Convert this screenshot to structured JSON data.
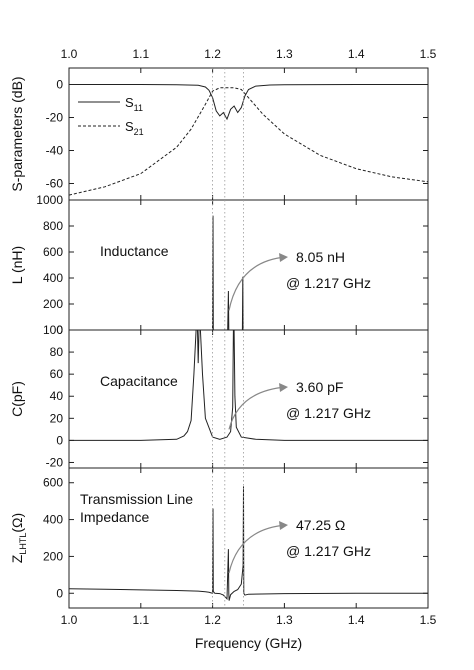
{
  "chart_data": {
    "type": "line",
    "xlabel": "Frequency (GHz)",
    "xlim": [
      1.0,
      1.5
    ],
    "xticks": [
      "1.0",
      "1.1",
      "1.2",
      "1.3",
      "1.4",
      "1.5"
    ],
    "top_xticks": [
      "1.0",
      "1.1",
      "1.2",
      "1.3",
      "1.4",
      "1.5"
    ],
    "guide_lines_x": [
      1.2,
      1.217,
      1.243
    ],
    "panels": [
      {
        "id": "s_params",
        "ylabel": "S-parameters (dB)",
        "ylim": [
          -70,
          10
        ],
        "yticks": [
          "0",
          "-20",
          "-40",
          "-60"
        ],
        "legend": {
          "placement": "left",
          "entries": [
            {
              "text": "S",
              "sub": "11",
              "style": "solid"
            },
            {
              "text": "S",
              "sub": "21",
              "style": "dashed"
            }
          ]
        },
        "series": [
          {
            "name": "S11",
            "style": "solid",
            "x": [
              1.0,
              1.1,
              1.15,
              1.18,
              1.19,
              1.195,
              1.2,
              1.205,
              1.21,
              1.215,
              1.22,
              1.225,
              1.23,
              1.235,
              1.24,
              1.245,
              1.25,
              1.26,
              1.28,
              1.3,
              1.4,
              1.5
            ],
            "y": [
              0,
              0,
              -0.1,
              -0.5,
              -1.5,
              -3.5,
              -8,
              -16,
              -19,
              -17,
              -21,
              -15,
              -13,
              -17,
              -14,
              -7,
              -3,
              -1,
              -0.3,
              -0.1,
              0,
              0
            ]
          },
          {
            "name": "S21",
            "style": "dashed",
            "x": [
              1.0,
              1.05,
              1.1,
              1.15,
              1.17,
              1.19,
              1.2,
              1.21,
              1.22,
              1.23,
              1.24,
              1.25,
              1.27,
              1.3,
              1.35,
              1.4,
              1.45,
              1.5
            ],
            "y": [
              -67,
              -62,
              -54,
              -38,
              -27,
              -12,
              -4,
              -2,
              -2,
              -2,
              -3,
              -8,
              -18,
              -30,
              -43,
              -51,
              -56,
              -59
            ]
          }
        ]
      },
      {
        "id": "inductance",
        "ylabel": "L (nH)",
        "ylim": [
          0,
          1000
        ],
        "yticks": [
          "1000",
          "800",
          "600",
          "400",
          "200",
          "0"
        ],
        "label": "Inductance",
        "annotation": {
          "line1": "8.05 nH",
          "line2": "@ 1.217 GHz",
          "arrow_from_x": 1.22,
          "arrow_from_y": 150
        },
        "series": [
          {
            "name": "L",
            "style": "solid",
            "x": [
              1.0,
              1.198,
              1.2,
              1.2005,
              1.201,
              1.22,
              1.221,
              1.222,
              1.2225,
              1.223,
              1.241,
              1.2415,
              1.242,
              1.2425,
              1.243,
              1.5
            ],
            "y": [
              0,
              0,
              0,
              880,
              0,
              0,
              0,
              300,
              0,
              0,
              0,
              0,
              410,
              0,
              0,
              0
            ]
          }
        ]
      },
      {
        "id": "capacitance",
        "ylabel": "C(pF)",
        "ylim": [
          -25,
          100
        ],
        "yticks": [
          "100",
          "80",
          "60",
          "40",
          "20",
          "0",
          "-20"
        ],
        "label": "Capacitance",
        "annotation": {
          "line1": "3.60 pF",
          "line2": "@ 1.217 GHz",
          "arrow_from_x": 1.22,
          "arrow_from_y": 10
        },
        "series": [
          {
            "name": "C",
            "style": "solid",
            "x": [
              1.0,
              1.1,
              1.15,
              1.16,
              1.165,
              1.17,
              1.174,
              1.177,
              1.179,
              1.18,
              1.181,
              1.183,
              1.186,
              1.19,
              1.2,
              1.21,
              1.22,
              1.225,
              1.228,
              1.229,
              1.23,
              1.231,
              1.233,
              1.24,
              1.26,
              1.3,
              1.5
            ],
            "y": [
              0,
              0,
              1,
              4,
              8,
              18,
              60,
              100,
              100,
              70,
              100,
              100,
              60,
              20,
              3,
              1,
              3,
              8,
              30,
              100,
              100,
              40,
              12,
              3,
              1,
              0,
              0
            ]
          }
        ]
      },
      {
        "id": "impedance",
        "ylabel_main": "Z",
        "ylabel_sub": "LHTL",
        "ylabel_unit": "(Ω)",
        "ylim": [
          -80,
          680
        ],
        "yticks": [
          "600",
          "400",
          "200",
          "0"
        ],
        "label_line1": "Transmission Line",
        "label_line2": "Impedance",
        "annotation": {
          "line1": "47.25 Ω",
          "line2": "@ 1.217 GHz",
          "arrow_from_x": 1.22,
          "arrow_from_y": 110
        },
        "series": [
          {
            "name": "Z",
            "style": "solid",
            "x": [
              1.0,
              1.05,
              1.1,
              1.15,
              1.18,
              1.19,
              1.195,
              1.198,
              1.2,
              1.2005,
              1.201,
              1.203,
              1.21,
              1.215,
              1.22,
              1.222,
              1.2225,
              1.223,
              1.225,
              1.23,
              1.235,
              1.24,
              1.2425,
              1.243,
              1.2435,
              1.245,
              1.25,
              1.3,
              1.4,
              1.5
            ],
            "y": [
              25,
              22,
              18,
              15,
              12,
              8,
              5,
              2,
              0,
              460,
              10,
              0,
              -2,
              -10,
              -30,
              240,
              0,
              -40,
              -8,
              10,
              20,
              50,
              150,
              580,
              0,
              -10,
              -5,
              -2,
              0,
              0
            ]
          }
        ]
      }
    ]
  }
}
